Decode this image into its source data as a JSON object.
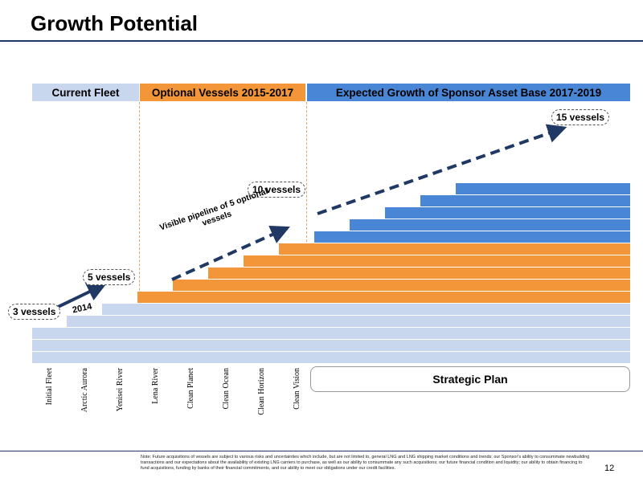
{
  "title": "Growth Potential",
  "headers": {
    "current": "Current Fleet",
    "optional": "Optional Vessels 2015-2017",
    "expected": "Expected Growth of Sponsor Asset Base 2017-2019"
  },
  "colors": {
    "current_header": "#c9d7ee",
    "optional_header": "#f3963a",
    "expected_header": "#4a86d6",
    "rule": "#1f3864",
    "arrow": "#1f3864"
  },
  "callouts": {
    "three": "3 vessels",
    "five": "5 vessels",
    "ten": "10 vessels",
    "fifteen": "15 vessels"
  },
  "year_label": "2014",
  "pipeline_label": "Visible pipeline of 5 optional vessels",
  "vessels": [
    "Initial Fleet",
    "Arctic Aurora",
    "Yenisei River",
    "Lena River",
    "Clean Planet",
    "Clean Ocean",
    "Clean Horizon",
    "Clean Vision"
  ],
  "strategic_plan": "Strategic Plan",
  "note": "Note: Future acquisitions of vessels are subject to various risks and uncertainties which include, but are not limited to, general LNG and LNG shipping market conditions and trends; our Sponsor's ability to consummate newbuilding transactions and our expectations about the availability of existing LNG carriers to purchase, as well as our ability to consummate any such acquisitions; our future financial condition and liquidity; our ability to obtain financing to fund acquisitions, funding by banks of their financial commitments, and our ability to meet our obligations under our credit facilities.",
  "page_number": "12"
}
